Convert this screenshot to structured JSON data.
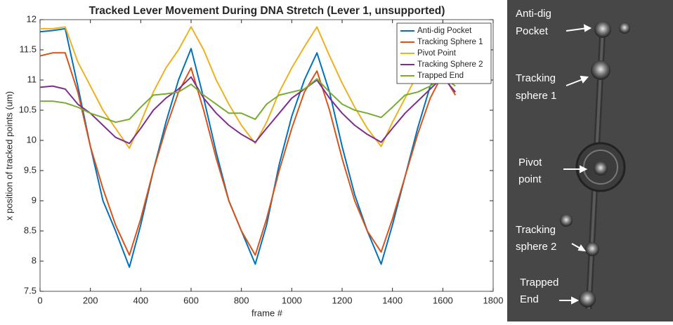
{
  "chart_data": {
    "type": "line",
    "title": "Tracked Lever Movement During DNA Stretch (Lever 1, unsupported)",
    "x_label": "frame #",
    "y_label": "x position of tracked points (um)",
    "x": [
      0,
      50,
      100,
      150,
      200,
      250,
      300,
      355,
      400,
      450,
      500,
      550,
      600,
      650,
      700,
      750,
      800,
      855,
      900,
      950,
      1000,
      1050,
      1100,
      1150,
      1200,
      1250,
      1300,
      1355,
      1400,
      1450,
      1500,
      1550,
      1600,
      1650
    ],
    "series": [
      {
        "name": "Anti-dig Pocket",
        "color": "#0072bd",
        "values": [
          11.8,
          11.82,
          11.85,
          10.9,
          9.9,
          9.0,
          8.5,
          7.9,
          8.6,
          9.5,
          10.3,
          11.0,
          11.52,
          10.7,
          9.8,
          9.0,
          8.5,
          7.95,
          8.6,
          9.6,
          10.4,
          11.0,
          11.45,
          10.8,
          9.9,
          9.1,
          8.5,
          7.95,
          8.6,
          9.4,
          10.2,
          10.9,
          11.2,
          11.0
        ]
      },
      {
        "name": "Tracking Sphere 1",
        "color": "#d95319",
        "values": [
          11.4,
          11.45,
          11.45,
          10.8,
          9.9,
          9.2,
          8.6,
          8.1,
          8.7,
          9.5,
          10.2,
          10.8,
          11.2,
          10.5,
          9.7,
          9.0,
          8.5,
          8.1,
          8.7,
          9.5,
          10.2,
          10.8,
          11.15,
          10.5,
          9.7,
          9.0,
          8.5,
          8.15,
          8.7,
          9.4,
          10.1,
          10.7,
          11.1,
          10.75
        ]
      },
      {
        "name": "Pivot Point",
        "color": "#edb120",
        "values": [
          11.85,
          11.85,
          11.88,
          11.3,
          10.9,
          10.5,
          10.2,
          9.87,
          10.3,
          10.8,
          11.2,
          11.5,
          11.88,
          11.5,
          11.0,
          10.6,
          10.25,
          9.95,
          10.3,
          10.8,
          11.2,
          11.55,
          11.88,
          11.4,
          10.95,
          10.55,
          10.2,
          9.9,
          10.3,
          10.7,
          11.1,
          11.5,
          11.8,
          11.0
        ]
      },
      {
        "name": "Tracking Sphere 2",
        "color": "#7e2f8e",
        "values": [
          10.88,
          10.9,
          10.85,
          10.6,
          10.45,
          10.25,
          10.05,
          9.95,
          10.2,
          10.5,
          10.7,
          10.85,
          11.05,
          10.7,
          10.45,
          10.25,
          10.1,
          9.97,
          10.2,
          10.45,
          10.7,
          10.85,
          11.0,
          10.7,
          10.45,
          10.25,
          10.1,
          9.97,
          10.2,
          10.45,
          10.65,
          10.85,
          11.05,
          10.8
        ]
      },
      {
        "name": "Trapped End",
        "color": "#77ac30",
        "values": [
          10.65,
          10.65,
          10.62,
          10.55,
          10.45,
          10.38,
          10.3,
          10.35,
          10.55,
          10.75,
          10.77,
          10.8,
          10.93,
          10.75,
          10.6,
          10.45,
          10.45,
          10.35,
          10.6,
          10.75,
          10.8,
          10.85,
          11.02,
          10.8,
          10.6,
          10.5,
          10.45,
          10.38,
          10.55,
          10.75,
          10.8,
          10.9,
          11.05,
          10.9
        ]
      }
    ],
    "xlim": [
      0,
      1800
    ],
    "xticks": [
      0,
      200,
      400,
      600,
      800,
      1000,
      1200,
      1400,
      1600,
      1800
    ],
    "ylim": [
      7.5,
      12
    ],
    "yticks": [
      7.5,
      8,
      8.5,
      9,
      9.5,
      10,
      10.5,
      11,
      11.5,
      12
    ],
    "legend": "northeast"
  },
  "image": {
    "labels": [
      [
        "Anti-dig",
        "Pocket"
      ],
      [
        "Tracking",
        "sphere 1"
      ],
      [
        "Pivot",
        "point"
      ],
      [
        "Tracking",
        "sphere 2"
      ],
      [
        "Trapped",
        "End"
      ]
    ]
  }
}
